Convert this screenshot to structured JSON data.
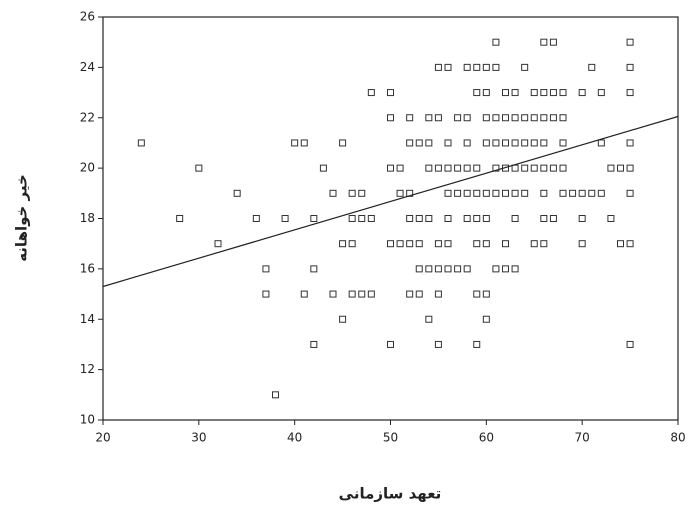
{
  "chart_data": {
    "type": "scatter",
    "x_label": "تعهد سازمانی",
    "y_label": "خیر خواهانه",
    "xlim": [
      20,
      80
    ],
    "ylim": [
      10,
      26
    ],
    "xticks": [
      20,
      30,
      40,
      50,
      60,
      70,
      80
    ],
    "yticks": [
      10,
      12,
      14,
      16,
      18,
      20,
      22,
      24,
      26
    ],
    "marker_color": "#333333",
    "line_color": "#222222",
    "x": [
      61,
      66,
      67,
      75,
      55,
      56,
      58,
      59,
      60,
      61,
      64,
      71,
      75,
      48,
      50,
      59,
      60,
      62,
      63,
      65,
      66,
      67,
      68,
      70,
      72,
      75,
      50,
      52,
      54,
      55,
      57,
      58,
      60,
      61,
      62,
      63,
      64,
      65,
      66,
      67,
      68,
      24,
      40,
      41,
      45,
      52,
      53,
      54,
      56,
      58,
      60,
      61,
      62,
      63,
      64,
      65,
      66,
      68,
      72,
      75,
      30,
      43,
      50,
      51,
      54,
      55,
      56,
      57,
      58,
      59,
      61,
      62,
      63,
      64,
      65,
      66,
      67,
      68,
      73,
      74,
      75,
      34,
      44,
      46,
      47,
      51,
      52,
      56,
      57,
      58,
      59,
      60,
      61,
      62,
      63,
      64,
      66,
      68,
      69,
      70,
      71,
      72,
      75,
      28,
      36,
      39,
      42,
      46,
      47,
      48,
      52,
      53,
      54,
      56,
      58,
      59,
      60,
      63,
      66,
      67,
      70,
      73,
      32,
      45,
      46,
      50,
      51,
      52,
      53,
      55,
      56,
      59,
      60,
      62,
      65,
      66,
      70,
      74,
      75,
      37,
      42,
      53,
      54,
      55,
      56,
      57,
      58,
      61,
      62,
      63,
      37,
      41,
      44,
      46,
      47,
      48,
      52,
      53,
      55,
      59,
      60,
      45,
      54,
      60,
      42,
      50,
      55,
      59,
      75,
      38
    ],
    "values": [
      25,
      25,
      25,
      25,
      24,
      24,
      24,
      24,
      24,
      24,
      24,
      24,
      24,
      23,
      23,
      23,
      23,
      23,
      23,
      23,
      23,
      23,
      23,
      23,
      23,
      23,
      22,
      22,
      22,
      22,
      22,
      22,
      22,
      22,
      22,
      22,
      22,
      22,
      22,
      22,
      22,
      21,
      21,
      21,
      21,
      21,
      21,
      21,
      21,
      21,
      21,
      21,
      21,
      21,
      21,
      21,
      21,
      21,
      21,
      21,
      20,
      20,
      20,
      20,
      20,
      20,
      20,
      20,
      20,
      20,
      20,
      20,
      20,
      20,
      20,
      20,
      20,
      20,
      20,
      20,
      20,
      19,
      19,
      19,
      19,
      19,
      19,
      19,
      19,
      19,
      19,
      19,
      19,
      19,
      19,
      19,
      19,
      19,
      19,
      19,
      19,
      19,
      19,
      18,
      18,
      18,
      18,
      18,
      18,
      18,
      18,
      18,
      18,
      18,
      18,
      18,
      18,
      18,
      18,
      18,
      18,
      18,
      17,
      17,
      17,
      17,
      17,
      17,
      17,
      17,
      17,
      17,
      17,
      17,
      17,
      17,
      17,
      17,
      17,
      16,
      16,
      16,
      16,
      16,
      16,
      16,
      16,
      16,
      16,
      16,
      15,
      15,
      15,
      15,
      15,
      15,
      15,
      15,
      15,
      15,
      15,
      14,
      14,
      14,
      13,
      13,
      13,
      13,
      13,
      11
    ],
    "fit_line": {
      "x": [
        20,
        80
      ],
      "y": [
        15.3,
        22.05
      ]
    }
  }
}
